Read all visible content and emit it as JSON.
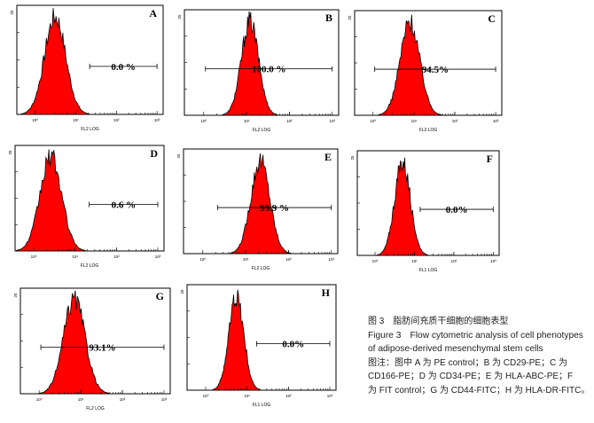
{
  "chart_data": [
    {
      "type": "histogram",
      "panel": "A",
      "y_tick_top": "25",
      "xlabel": "FL2 LOG",
      "x_ticks": [
        "10⁰",
        "10¹",
        "10²",
        "10³"
      ],
      "gate_label": "0.0 %",
      "peak_x": 3.1,
      "width": 0.26,
      "gate_range": [
        22,
        1000
      ]
    },
    {
      "type": "histogram",
      "panel": "B",
      "y_tick_top": "25",
      "xlabel": "FL2 LOG",
      "x_ticks": [
        "10⁰",
        "10¹",
        "10²",
        "10³"
      ],
      "gate_label": "100.0 %",
      "peak_x": 12,
      "width": 0.2,
      "gate_range": [
        1.1,
        1000
      ]
    },
    {
      "type": "histogram",
      "panel": "C",
      "y_tick_top": "25",
      "xlabel": "FL2 LOG",
      "x_ticks": [
        "10⁰",
        "10¹",
        "10²",
        "10³"
      ],
      "gate_label": "94.5%",
      "peak_x": 8,
      "width": 0.24,
      "gate_range": [
        1.1,
        1000
      ]
    },
    {
      "type": "histogram",
      "panel": "D",
      "y_tick_top": "25",
      "xlabel": "FL2 LOG",
      "x_ticks": [
        "10⁰",
        "10¹",
        "10²",
        "10³"
      ],
      "gate_label": "0.6 %",
      "peak_x": 2.6,
      "width": 0.26,
      "gate_range": [
        22,
        1000
      ]
    },
    {
      "type": "histogram",
      "panel": "E",
      "y_tick_top": "25",
      "xlabel": "FL2 LOG",
      "x_ticks": [
        "10⁰",
        "10¹",
        "10²",
        "10³"
      ],
      "gate_label": "99.9 %",
      "peak_x": 22,
      "width": 0.22,
      "gate_range": [
        2.2,
        1000
      ]
    },
    {
      "type": "histogram",
      "panel": "F",
      "y_tick_top": "25",
      "xlabel": "FL1 LOG",
      "x_ticks": [
        "10⁰",
        "10¹",
        "10²",
        "10³"
      ],
      "gate_label": "0.0%",
      "peak_x": 5,
      "width": 0.2,
      "gate_range": [
        14,
        1000
      ]
    },
    {
      "type": "histogram",
      "panel": "G",
      "y_tick_top": "25",
      "xlabel": "FL2 LOG",
      "x_ticks": [
        "10⁰",
        "10¹",
        "10²",
        "10³"
      ],
      "gate_label": "93.1%",
      "peak_x": 7,
      "width": 0.26,
      "gate_range": [
        1.1,
        1000
      ]
    },
    {
      "type": "histogram",
      "panel": "H",
      "y_tick_top": "25",
      "xlabel": "FL1 LOG",
      "x_ticks": [
        "10⁰",
        "10¹",
        "10²",
        "10³"
      ],
      "gate_label": "0.0%",
      "peak_x": 5.5,
      "width": 0.18,
      "gate_range": [
        17,
        1000
      ]
    }
  ],
  "colors": {
    "fill": "#ff0000",
    "outline": "#000000",
    "frame": "#000000"
  },
  "caption": {
    "cn_title": "图 3　脂肪间充质干细胞的细胞表型",
    "en_title_1": "Figure 3　Flow cytometric analysis of cell phenotypes",
    "en_title_2": "of adipose-derived mesenchymal stem cells",
    "note_1": "图注：图中 A 为 PE control；B 为 CD29-PE；C 为",
    "note_2": "CD166-PE；D 为 CD34-PE；E 为 HLA-ABC-PE；F",
    "note_3": "为 FIT control；G 为 CD44-FITC；H 为 HLA-DR-FITC。"
  }
}
